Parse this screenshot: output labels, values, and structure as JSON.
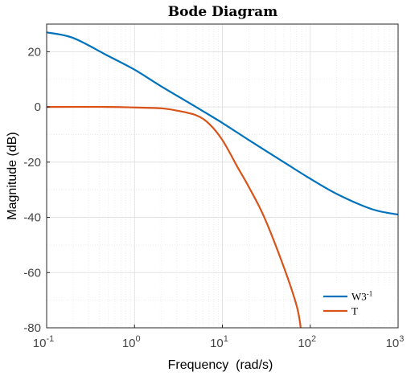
{
  "chart_data": {
    "type": "line",
    "title": "Bode Diagram",
    "xlabel": "Frequency  (rad/s)",
    "ylabel": "Magnitude (dB)",
    "xscale": "log",
    "xlim": [
      0.1,
      1000
    ],
    "ylim": [
      -80,
      30
    ],
    "xticks": [
      {
        "value": 0.1,
        "base": "10",
        "exp": "-1"
      },
      {
        "value": 1,
        "base": "10",
        "exp": "0"
      },
      {
        "value": 10,
        "base": "10",
        "exp": "1"
      },
      {
        "value": 100,
        "base": "10",
        "exp": "2"
      },
      {
        "value": 1000,
        "base": "10",
        "exp": "3"
      }
    ],
    "yticks": [
      20,
      0,
      -20,
      -40,
      -60,
      -80
    ],
    "grid": true,
    "legend_position": "bottom-right",
    "series": [
      {
        "name": "W3",
        "name_sup": "-1",
        "color": "#0072BD",
        "x": [
          0.1,
          0.2,
          0.5,
          1,
          2,
          5,
          10,
          20,
          50,
          100,
          200,
          500,
          1000
        ],
        "y": [
          27,
          25,
          18.5,
          13.5,
          7.5,
          0,
          -5.8,
          -12,
          -20,
          -26,
          -31.5,
          -37,
          -39
        ]
      },
      {
        "name": "T",
        "name_sup": "",
        "color": "#D95319",
        "x": [
          0.1,
          0.5,
          1,
          2,
          3,
          5,
          7,
          10,
          15,
          20,
          30,
          50,
          70,
          78
        ],
        "y": [
          0,
          0,
          -0.2,
          -0.5,
          -1.3,
          -3,
          -6,
          -12,
          -22,
          -29,
          -40,
          -58,
          -72,
          -80
        ]
      }
    ]
  }
}
